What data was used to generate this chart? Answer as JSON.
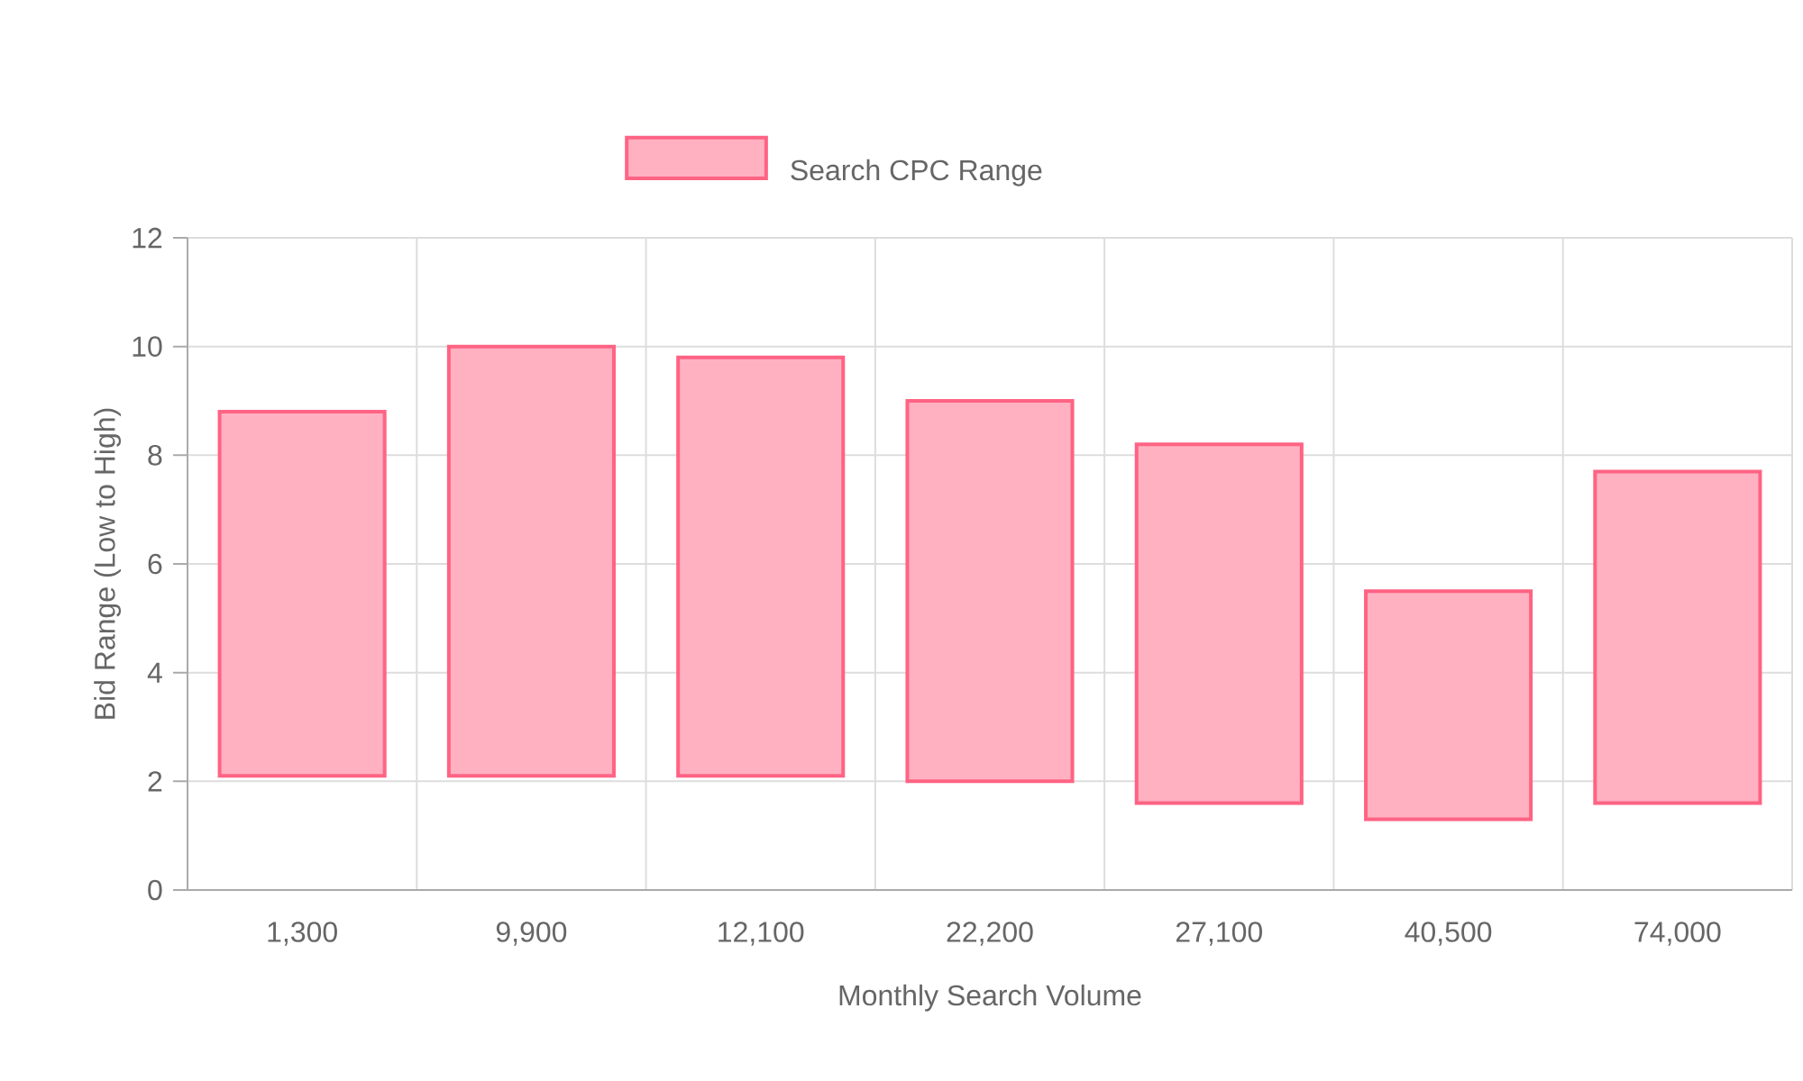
{
  "chart_data": {
    "type": "bar",
    "xlabel": "Monthly Search Volume",
    "ylabel": "Bid Range (Low to High)",
    "categories": [
      "1,300",
      "9,900",
      "12,100",
      "22,200",
      "27,100",
      "40,500",
      "74,000"
    ],
    "series": [
      {
        "name": "Search CPC Range",
        "color": "#ffb1c1",
        "base": [
          2.1,
          2.1,
          2.1,
          2.0,
          1.6,
          1.3,
          1.6
        ],
        "values": [
          6.7,
          7.9,
          7.7,
          7.0,
          6.6,
          4.2,
          6.1
        ]
      }
    ],
    "ylim": [
      0,
      12
    ],
    "yticks": [
      0,
      2,
      4,
      6,
      8,
      10,
      12
    ],
    "grid": true,
    "legend": "top"
  }
}
